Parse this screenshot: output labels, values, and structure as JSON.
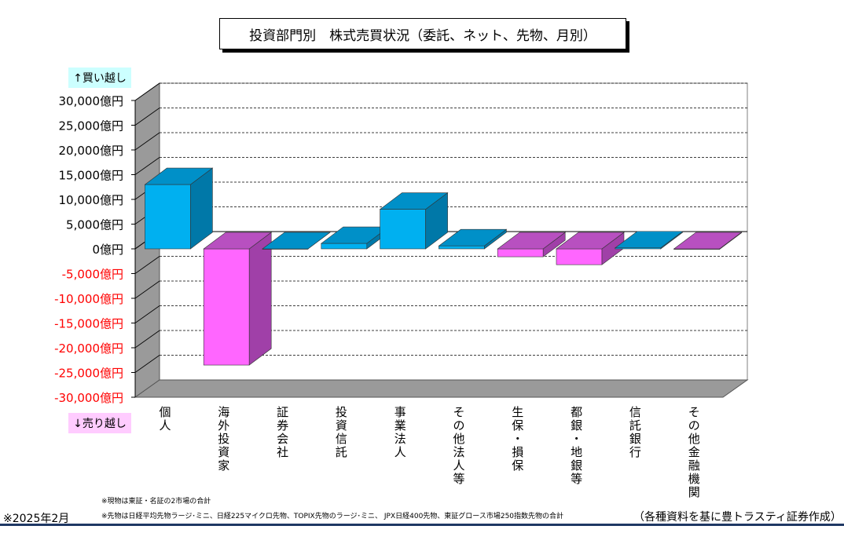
{
  "title": "投資部門別　株式売買状況（委託、ネット、先物、月別）",
  "badges": {
    "buy": "↑買い越し",
    "sell": "↓売り越し"
  },
  "notes": {
    "spot": "※現物は東証・名証の2市場の合計",
    "futures": "※先物は日経平均先物ラージ･ミニ、日経225マイクロ先物、TOPIX先物のラージ･ミニ、 JPX日経400先物、東証グロース市場250指数先物の合計"
  },
  "date": "※2025年2月",
  "source": "（各種資料を基に豊トラスティ証券作成）",
  "colors": {
    "positive": "#00b0f0",
    "negative": "#ff66ff",
    "negative_tick": "#ff0000"
  },
  "chart_data": {
    "type": "bar",
    "categories": [
      "個人",
      "海外投資家",
      "証券会社",
      "投資信託",
      "事業法人",
      "その他法人等",
      "生保・損保",
      "都銀・地銀等",
      "信託銀行",
      "その他金融機関"
    ],
    "values": [
      13000,
      -23500,
      0,
      1100,
      8000,
      600,
      -1600,
      -3200,
      200,
      -100
    ],
    "unit": "億円",
    "ylim": [
      -30000,
      30000
    ],
    "yticks": [
      30000,
      25000,
      20000,
      15000,
      10000,
      5000,
      0,
      -5000,
      -10000,
      -15000,
      -20000,
      -25000,
      -30000
    ],
    "ytick_labels": [
      "30,000億円",
      "25,000億円",
      "20,000億円",
      "15,000億円",
      "10,000億円",
      "5,000億円",
      "0億円",
      "-5,000億円",
      "-10,000億円",
      "-15,000億円",
      "-20,000億円",
      "-25,000億円",
      "-30,000億円"
    ],
    "grid": true,
    "legend": "none"
  }
}
